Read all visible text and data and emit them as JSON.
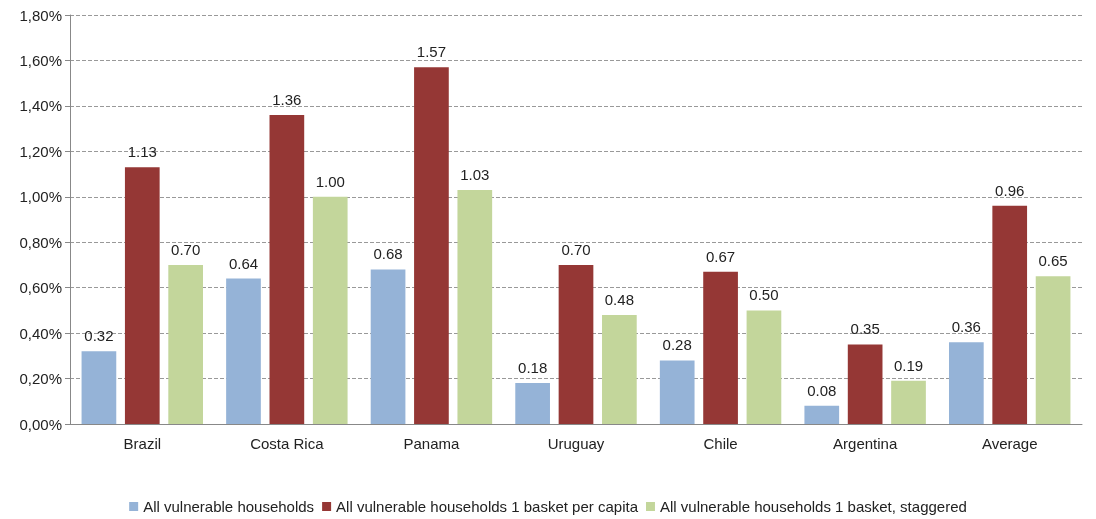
{
  "chart_data": {
    "type": "bar",
    "categories": [
      "Brazil",
      "Costa Rica",
      "Panama",
      "Uruguay",
      "Chile",
      "Argentina",
      "Average"
    ],
    "series": [
      {
        "name": "All vulnerable households",
        "color": "#95b3d7",
        "values": [
          0.32,
          0.64,
          0.68,
          0.18,
          0.28,
          0.08,
          0.36
        ],
        "value_labels": [
          "0.32",
          "0.64",
          "0.68",
          "0.18",
          "0.28",
          "0.08",
          "0.36"
        ]
      },
      {
        "name": "All vulnerable households 1 basket per capita",
        "color": "#953735",
        "values": [
          1.13,
          1.36,
          1.57,
          0.7,
          0.67,
          0.35,
          0.96
        ],
        "value_labels": [
          "1.13",
          "1.36",
          "1.57",
          "0.70",
          "0.67",
          "0.35",
          "0.96"
        ]
      },
      {
        "name": "All vulnerable households 1 basket, staggered",
        "color": "#c3d69b",
        "values": [
          0.7,
          1.0,
          1.03,
          0.48,
          0.5,
          0.19,
          0.65
        ],
        "value_labels": [
          "0.70",
          "1.00",
          "1.03",
          "0.48",
          "0.50",
          "0.19",
          "0.65"
        ]
      }
    ],
    "ylim": [
      0,
      1.8
    ],
    "yticks": [
      {
        "value": 0,
        "label": "0,00%"
      },
      {
        "value": 0.2,
        "label": "0,20%"
      },
      {
        "value": 0.4,
        "label": "0,40%"
      },
      {
        "value": 0.6,
        "label": "0,60%"
      },
      {
        "value": 0.8,
        "label": "0,80%"
      },
      {
        "value": 1.0,
        "label": "1,00%"
      },
      {
        "value": 1.2,
        "label": "1,20%"
      },
      {
        "value": 1.4,
        "label": "1,40%"
      },
      {
        "value": 1.6,
        "label": "1,60%"
      },
      {
        "value": 1.8,
        "label": "1,80%"
      }
    ],
    "grid": "y",
    "legend": "bottom"
  }
}
